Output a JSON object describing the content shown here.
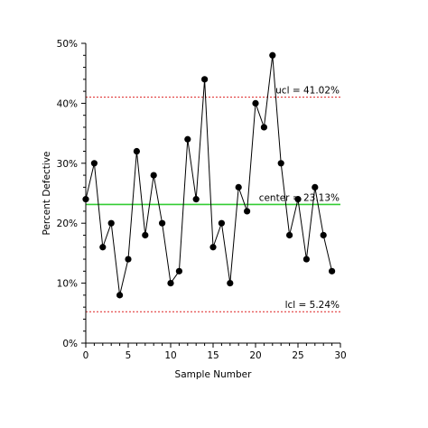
{
  "chart_data": {
    "type": "line",
    "title": "",
    "xlabel": "Sample Number",
    "ylabel": "Percent Defective",
    "xlim": [
      0,
      30
    ],
    "ylim": [
      0,
      50
    ],
    "x_ticks": [
      0,
      5,
      10,
      15,
      20,
      25,
      30
    ],
    "x_tick_labels": [
      "0",
      "5",
      "10",
      "15",
      "20",
      "25",
      "30"
    ],
    "y_ticks": [
      0,
      10,
      20,
      30,
      40,
      50
    ],
    "y_tick_labels": [
      "0%",
      "10%",
      "20%",
      "30%",
      "40%",
      "50%"
    ],
    "grid": false,
    "legend": "none",
    "series": [
      {
        "x": [
          0,
          1,
          2,
          3,
          4,
          5,
          6,
          7,
          8,
          9,
          10,
          11,
          12,
          13,
          14,
          15,
          16,
          17,
          18,
          19,
          20,
          21,
          22,
          23,
          24,
          25,
          26,
          27,
          28,
          29
        ],
        "values": [
          24,
          30,
          16,
          20,
          8,
          14,
          32,
          18,
          28,
          20,
          10,
          12,
          34,
          24,
          44,
          16,
          20,
          10,
          26,
          22,
          40,
          36,
          48,
          30,
          18,
          24,
          14,
          26,
          18,
          12
        ],
        "color": "#000000"
      }
    ],
    "reference_lines": [
      {
        "label": "ucl = 41.02%",
        "value": 41.02,
        "color": "#dd2222",
        "style": "dotted"
      },
      {
        "label": "center = 23.13%",
        "value": 23.13,
        "color": "#33cc33",
        "style": "solid"
      },
      {
        "label": "lcl = 5.24%",
        "value": 5.24,
        "color": "#dd2222",
        "style": "dotted"
      }
    ]
  }
}
